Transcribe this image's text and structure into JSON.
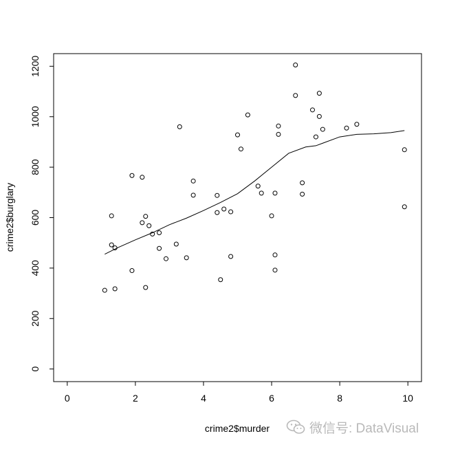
{
  "chart_data": {
    "type": "scatter",
    "xlabel": "crime2$murder",
    "ylabel": "crime2$burglary",
    "xlim": [
      -0.4,
      10.4
    ],
    "ylim": [
      -50,
      1250
    ],
    "xticks": [
      0,
      2,
      4,
      6,
      8,
      10
    ],
    "yticks": [
      0,
      200,
      400,
      600,
      800,
      1000,
      1200
    ],
    "grid": false,
    "legend": "none",
    "points": [
      {
        "x": 1.1,
        "y": 312
      },
      {
        "x": 1.3,
        "y": 492
      },
      {
        "x": 1.3,
        "y": 607
      },
      {
        "x": 1.4,
        "y": 318
      },
      {
        "x": 1.4,
        "y": 480
      },
      {
        "x": 1.9,
        "y": 390
      },
      {
        "x": 1.9,
        "y": 767
      },
      {
        "x": 2.2,
        "y": 760
      },
      {
        "x": 2.2,
        "y": 580
      },
      {
        "x": 2.3,
        "y": 605
      },
      {
        "x": 2.3,
        "y": 323
      },
      {
        "x": 2.4,
        "y": 568
      },
      {
        "x": 2.5,
        "y": 535
      },
      {
        "x": 2.7,
        "y": 478
      },
      {
        "x": 2.7,
        "y": 540
      },
      {
        "x": 2.9,
        "y": 437
      },
      {
        "x": 3.2,
        "y": 495
      },
      {
        "x": 3.3,
        "y": 960
      },
      {
        "x": 3.5,
        "y": 441
      },
      {
        "x": 3.7,
        "y": 745
      },
      {
        "x": 3.7,
        "y": 689
      },
      {
        "x": 4.4,
        "y": 688
      },
      {
        "x": 4.4,
        "y": 620
      },
      {
        "x": 4.5,
        "y": 354
      },
      {
        "x": 4.6,
        "y": 634
      },
      {
        "x": 4.8,
        "y": 623
      },
      {
        "x": 4.8,
        "y": 446
      },
      {
        "x": 5.0,
        "y": 928
      },
      {
        "x": 5.1,
        "y": 872
      },
      {
        "x": 5.3,
        "y": 1007
      },
      {
        "x": 5.6,
        "y": 725
      },
      {
        "x": 5.7,
        "y": 697
      },
      {
        "x": 6.0,
        "y": 607
      },
      {
        "x": 6.1,
        "y": 697
      },
      {
        "x": 6.1,
        "y": 452
      },
      {
        "x": 6.1,
        "y": 392
      },
      {
        "x": 6.2,
        "y": 963
      },
      {
        "x": 6.2,
        "y": 930
      },
      {
        "x": 6.7,
        "y": 1205
      },
      {
        "x": 6.7,
        "y": 1084
      },
      {
        "x": 6.9,
        "y": 738
      },
      {
        "x": 6.9,
        "y": 693
      },
      {
        "x": 7.2,
        "y": 1027
      },
      {
        "x": 7.3,
        "y": 920
      },
      {
        "x": 7.4,
        "y": 1093
      },
      {
        "x": 7.4,
        "y": 1001
      },
      {
        "x": 7.5,
        "y": 950
      },
      {
        "x": 8.2,
        "y": 955
      },
      {
        "x": 8.5,
        "y": 970
      },
      {
        "x": 9.9,
        "y": 869
      },
      {
        "x": 9.9,
        "y": 643
      }
    ],
    "smooth_line": {
      "x": [
        1.1,
        1.5,
        2.0,
        2.5,
        3.0,
        3.5,
        4.0,
        4.5,
        5.0,
        5.5,
        6.0,
        6.5,
        7.0,
        7.3,
        7.5,
        8.0,
        8.5,
        9.0,
        9.5,
        9.9
      ],
      "y": [
        455,
        482,
        512,
        540,
        572,
        598,
        628,
        660,
        695,
        745,
        800,
        855,
        880,
        885,
        895,
        920,
        930,
        932,
        937,
        945
      ]
    }
  },
  "watermark": {
    "text": "微信号: DataVisual",
    "icon": "wechat-icon"
  }
}
